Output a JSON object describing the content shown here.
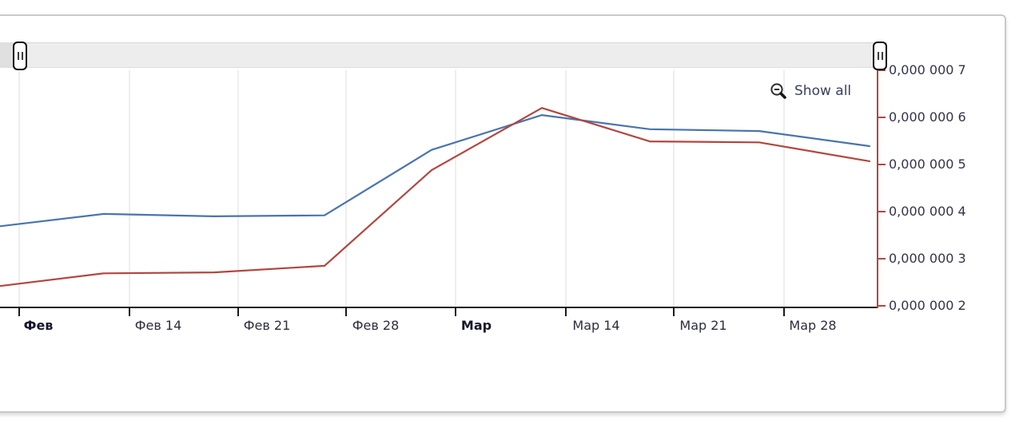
{
  "controls": {
    "show_all": "Show all"
  },
  "chart_data": {
    "type": "line",
    "title": "",
    "xlabel": "",
    "ylabel": "",
    "x_tick_labels": [
      "Фев",
      "Фев 14",
      "Фев 21",
      "Фев 28",
      "Мар",
      "Мар 14",
      "Мар 21",
      "Мар 28"
    ],
    "x_tick_bold": [
      true,
      false,
      false,
      false,
      true,
      false,
      false,
      false
    ],
    "y_axis_side": "right",
    "y_tick_labels": [
      "0,000 000 7",
      "0,000 000 6",
      "0,000 000 5",
      "0,000 000 4",
      "0,000 000 3",
      "0,000 000 2"
    ],
    "y_tick_values": [
      7,
      6,
      5,
      4,
      3,
      2
    ],
    "ylim": [
      1.95,
      7.05
    ],
    "grid": "vertical-only",
    "x_note": "weekly data points; first and last points clipped at plot edges",
    "series": [
      {
        "name": "series-blue",
        "color": "#4a74ad",
        "values": [
          3.69,
          3.95,
          3.9,
          3.92,
          5.31,
          6.05,
          5.75,
          5.71,
          5.39
        ]
      },
      {
        "name": "series-red",
        "color": "#b2463f",
        "values": [
          2.42,
          2.69,
          2.71,
          2.85,
          4.88,
          6.2,
          5.49,
          5.47,
          5.07
        ]
      }
    ],
    "colors": {
      "grid_line": "#dcdcdc",
      "x_axis_line": "#1a1a1a",
      "y_axis_line": "#b2463f"
    }
  }
}
